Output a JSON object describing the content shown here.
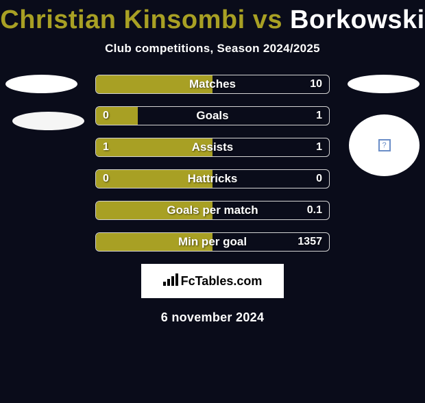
{
  "title": {
    "left": "Christian Kinsombi",
    "vs": "vs",
    "right": "Borkowski",
    "left_color": "#a8a024",
    "right_color": "#ffffff"
  },
  "subtitle": "Club competitions, Season 2024/2025",
  "colors": {
    "background": "#0a0c1a",
    "bar_left": "#a8a024",
    "bar_border": "#d4d4d4",
    "text": "#ffffff"
  },
  "avatars": {
    "badge_box_text": "?"
  },
  "stats": [
    {
      "label": "Matches",
      "left_value": "",
      "right_value": "10",
      "left_fill_pct": 50,
      "left_bg": "#a8a024"
    },
    {
      "label": "Goals",
      "left_value": "0",
      "right_value": "1",
      "left_fill_pct": 18,
      "left_bg": "#a8a024"
    },
    {
      "label": "Assists",
      "left_value": "1",
      "right_value": "1",
      "left_fill_pct": 50,
      "left_bg": "#a8a024"
    },
    {
      "label": "Hattricks",
      "left_value": "0",
      "right_value": "0",
      "left_fill_pct": 50,
      "left_bg": "#a8a024"
    },
    {
      "label": "Goals per match",
      "left_value": "",
      "right_value": "0.1",
      "left_fill_pct": 50,
      "left_bg": "#a8a024"
    },
    {
      "label": "Min per goal",
      "left_value": "",
      "right_value": "1357",
      "left_fill_pct": 50,
      "left_bg": "#a8a024"
    }
  ],
  "logo": {
    "text": "FcTables.com",
    "icon": "📊"
  },
  "date": "6 november 2024"
}
